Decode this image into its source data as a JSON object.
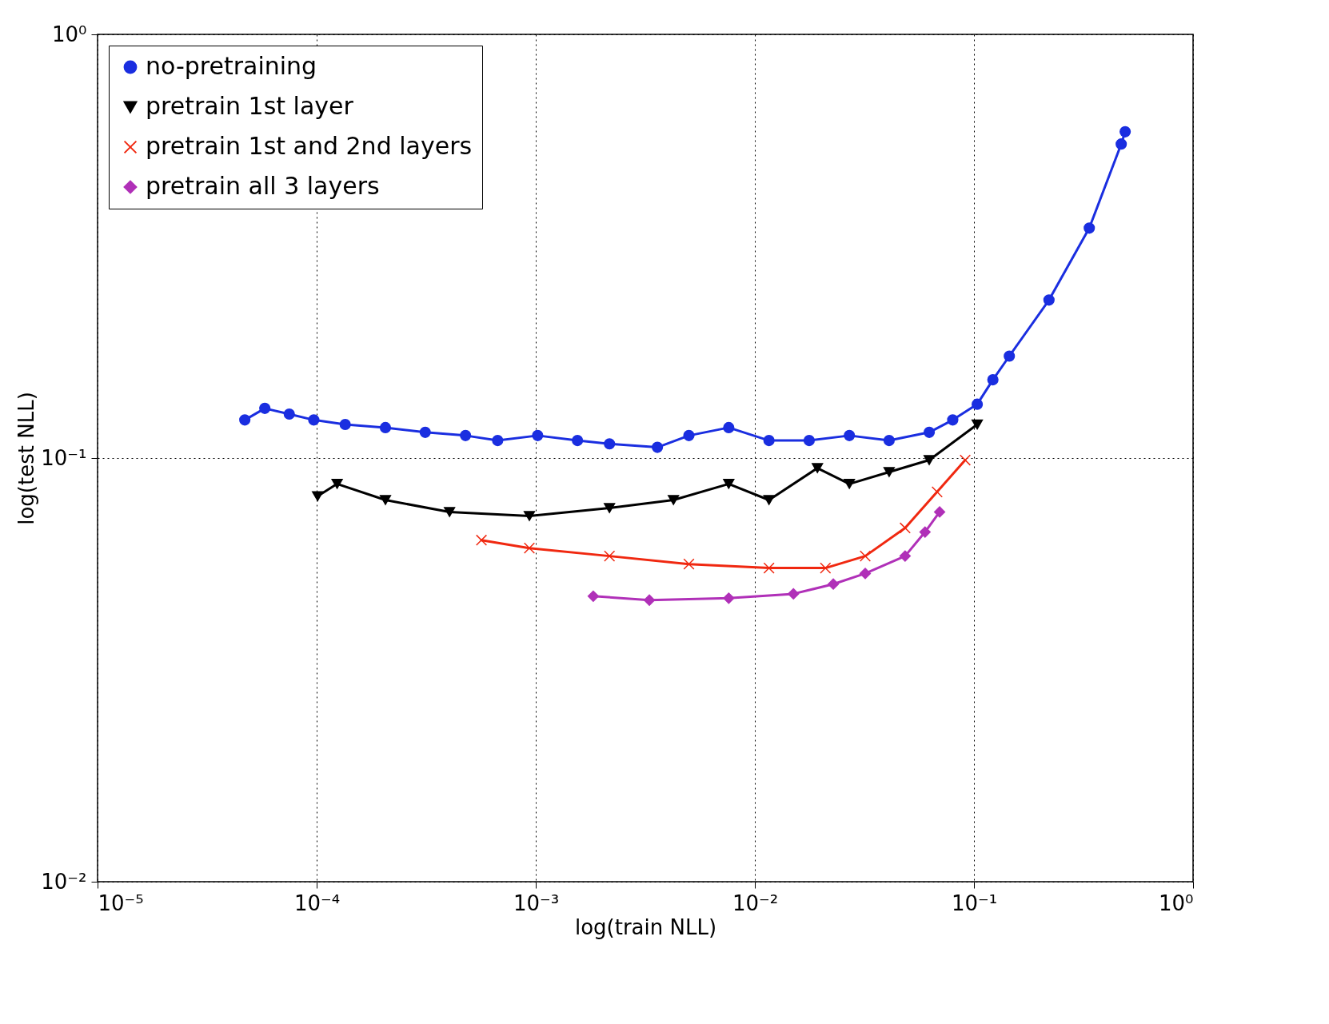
{
  "chart_data": {
    "type": "line",
    "xlabel": "log(train NLL)",
    "ylabel": "log(test NLL)",
    "log": "xy",
    "grid": true,
    "legend": "top left",
    "line_style": "solid",
    "xlim": [
      1e-05,
      1
    ],
    "ylim": [
      0.01,
      1
    ],
    "xticks": [
      {
        "value": 1e-05,
        "label": "10⁻⁵"
      },
      {
        "value": 0.0001,
        "label": "10⁻⁴"
      },
      {
        "value": 0.001,
        "label": "10⁻³"
      },
      {
        "value": 0.01,
        "label": "10⁻²"
      },
      {
        "value": 0.1,
        "label": "10⁻¹"
      },
      {
        "value": 1,
        "label": "10⁰"
      }
    ],
    "yticks": [
      {
        "value": 0.01,
        "label": "10⁻²"
      },
      {
        "value": 0.1,
        "label": "10⁻¹"
      },
      {
        "value": 1,
        "label": "10⁰"
      }
    ],
    "series": [
      {
        "name": "no-pretraining",
        "color": "#1a2ee0",
        "marker": "circle",
        "x": [
          4.7e-05,
          5.8e-05,
          7.5e-05,
          9.7e-05,
          0.000135,
          0.000206,
          0.000313,
          0.000478,
          0.00067,
          0.00102,
          0.00155,
          0.00217,
          0.00359,
          0.005,
          0.0076,
          0.0116,
          0.0177,
          0.027,
          0.041,
          0.0625,
          0.08,
          0.1035,
          0.122,
          0.145,
          0.22,
          0.336,
          0.47,
          0.49
        ],
        "values": [
          0.123,
          0.131,
          0.127,
          0.123,
          0.12,
          0.118,
          0.115,
          0.113,
          0.11,
          0.113,
          0.11,
          0.108,
          0.106,
          0.113,
          0.118,
          0.11,
          0.11,
          0.113,
          0.11,
          0.115,
          0.123,
          0.134,
          0.153,
          0.174,
          0.236,
          0.349,
          0.551,
          0.589
        ]
      },
      {
        "name": "pretrain 1st layer",
        "color": "#000000",
        "marker": "triangle",
        "x": [
          0.000101,
          0.000124,
          0.000206,
          0.000404,
          0.000935,
          0.00217,
          0.00425,
          0.0076,
          0.0116,
          0.0193,
          0.027,
          0.041,
          0.0625,
          0.1035
        ],
        "values": [
          0.0813,
          0.0869,
          0.0796,
          0.0746,
          0.073,
          0.0762,
          0.0796,
          0.0869,
          0.0796,
          0.0947,
          0.0869,
          0.0927,
          0.0989,
          0.12
        ]
      },
      {
        "name": "pretrain 1st and 2nd layers",
        "color": "#f02810",
        "marker": "cross",
        "x": [
          0.000565,
          0.000935,
          0.00217,
          0.005,
          0.0116,
          0.021,
          0.0319,
          0.0485,
          0.0679,
          0.0912
        ],
        "values": [
          0.064,
          0.0613,
          0.0587,
          0.0562,
          0.055,
          0.055,
          0.0587,
          0.0684,
          0.0832,
          0.0989
        ]
      },
      {
        "name": "pretrain all 3 layers",
        "color": "#b030b8",
        "marker": "diamond",
        "x": [
          0.00183,
          0.0033,
          0.0076,
          0.015,
          0.0228,
          0.0319,
          0.0485,
          0.0598,
          0.0697
        ],
        "values": [
          0.0472,
          0.0462,
          0.0467,
          0.0478,
          0.0504,
          0.0534,
          0.0587,
          0.0669,
          0.0746
        ]
      }
    ]
  }
}
